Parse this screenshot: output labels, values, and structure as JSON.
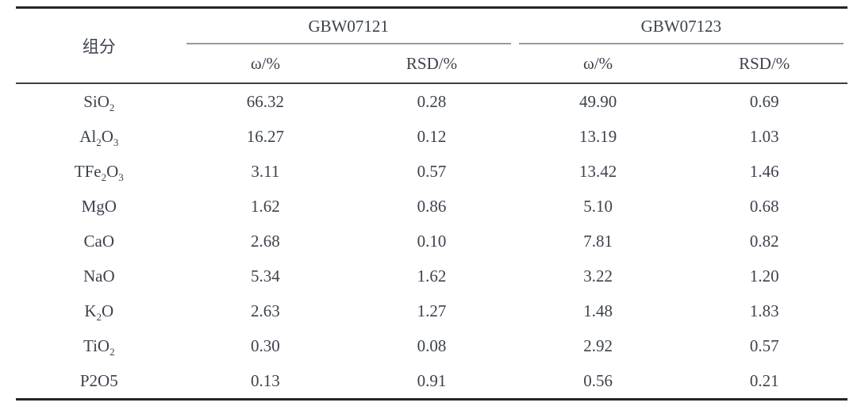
{
  "table": {
    "component_header": "组分",
    "groups": [
      {
        "name": "GBW07121",
        "subcolumns": [
          "ω/%",
          "RSD/%"
        ]
      },
      {
        "name": "GBW07123",
        "subcolumns": [
          "ω/%",
          "RSD/%"
        ]
      }
    ],
    "rows": [
      {
        "component": "SiO_2",
        "values": [
          "66.32",
          "0.28",
          "49.90",
          "0.69"
        ]
      },
      {
        "component": "Al_2O_3",
        "values": [
          "16.27",
          "0.12",
          "13.19",
          "1.03"
        ]
      },
      {
        "component": "TFe_2O_3",
        "values": [
          "3.11",
          "0.57",
          "13.42",
          "1.46"
        ]
      },
      {
        "component": "MgO",
        "values": [
          "1.62",
          "0.86",
          "5.10",
          "0.68"
        ]
      },
      {
        "component": "CaO",
        "values": [
          "2.68",
          "0.10",
          "7.81",
          "0.82"
        ]
      },
      {
        "component": "NaO",
        "values": [
          "5.34",
          "1.62",
          "3.22",
          "1.20"
        ]
      },
      {
        "component": "K_2O",
        "values": [
          "2.63",
          "1.27",
          "1.48",
          "1.83"
        ]
      },
      {
        "component": "TiO_2",
        "values": [
          "0.30",
          "0.08",
          "2.92",
          "0.57"
        ]
      },
      {
        "component": "P2O5",
        "values": [
          "0.13",
          "0.91",
          "0.56",
          "0.21"
        ]
      }
    ]
  },
  "colors": {
    "text": "#3c424d",
    "thick_rule": "#26262a",
    "sub_rule": "#3f3f44",
    "group_rule": "#9a9a9e"
  },
  "chart_data": {
    "type": "table",
    "title": "",
    "columns": [
      "组分",
      "GBW07121 ω/%",
      "GBW07121 RSD/%",
      "GBW07123 ω/%",
      "GBW07123 RSD/%"
    ],
    "rows": [
      [
        "SiO2",
        66.32,
        0.28,
        49.9,
        0.69
      ],
      [
        "Al2O3",
        16.27,
        0.12,
        13.19,
        1.03
      ],
      [
        "TFe2O3",
        3.11,
        0.57,
        13.42,
        1.46
      ],
      [
        "MgO",
        1.62,
        0.86,
        5.1,
        0.68
      ],
      [
        "CaO",
        2.68,
        0.1,
        7.81,
        0.82
      ],
      [
        "NaO",
        5.34,
        1.62,
        3.22,
        1.2
      ],
      [
        "K2O",
        2.63,
        1.27,
        1.48,
        1.83
      ],
      [
        "TiO2",
        0.3,
        0.08,
        2.92,
        0.57
      ],
      [
        "P2O5",
        0.13,
        0.91,
        0.56,
        0.21
      ]
    ]
  }
}
